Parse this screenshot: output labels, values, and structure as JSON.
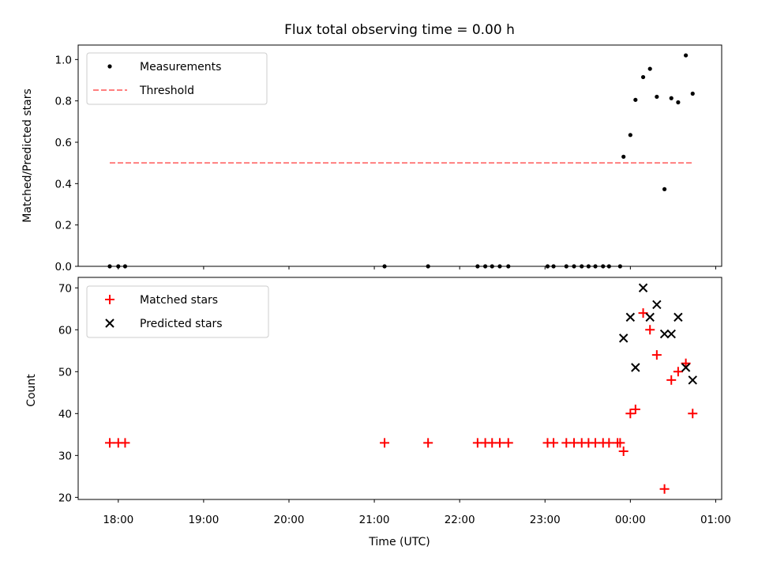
{
  "chart_data": [
    {
      "type": "scatter",
      "title": "Flux total observing time = 0.00 h",
      "xlabel": "",
      "ylabel": "Matched/Predicted stars",
      "ylim": [
        0,
        1.07
      ],
      "yticks": [
        "0.0",
        "0.2",
        "0.4",
        "0.6",
        "0.8",
        "1.0"
      ],
      "ytick_values": [
        0,
        0.2,
        0.4,
        0.6,
        0.8,
        1.0
      ],
      "legend_position": "top-left",
      "series": [
        {
          "name": "Measurements",
          "kind": "points",
          "marker": "dot",
          "color": "#000000",
          "x_hours": [
            17.9,
            18.0,
            18.08,
            21.12,
            21.63,
            22.21,
            22.3,
            22.38,
            22.47,
            22.57,
            23.03,
            23.1,
            23.25,
            23.34,
            23.43,
            23.51,
            23.59,
            23.68,
            23.75,
            23.88,
            23.92,
            24.0,
            24.06,
            24.15,
            24.23,
            24.31,
            24.4,
            24.48,
            24.56,
            24.65,
            24.73
          ],
          "values": [
            0,
            0,
            0,
            0,
            0,
            0,
            0,
            0,
            0,
            0,
            0,
            0,
            0,
            0,
            0,
            0,
            0,
            0,
            0,
            0,
            0.53,
            0.635,
            0.805,
            0.915,
            0.955,
            0.82,
            0.373,
            0.813,
            0.793,
            1.02,
            0.835
          ]
        },
        {
          "name": "Threshold",
          "kind": "dashed-line",
          "color": "#ff7f7f",
          "x_hours": [
            17.9,
            24.73
          ],
          "values": [
            0.5,
            0.5
          ]
        }
      ]
    },
    {
      "type": "scatter",
      "title": "",
      "xlabel": "Time (UTC)",
      "ylabel": "Count",
      "ylim": [
        19.5,
        72.5
      ],
      "yticks": [
        "20",
        "30",
        "40",
        "50",
        "60",
        "70"
      ],
      "ytick_values": [
        20,
        30,
        40,
        50,
        60,
        70
      ],
      "xlim_hours": [
        17.53,
        25.07
      ],
      "xtick_values_hours": [
        18,
        19,
        20,
        21,
        22,
        23,
        24,
        25
      ],
      "xticks": [
        "18:00",
        "19:00",
        "20:00",
        "21:00",
        "22:00",
        "23:00",
        "00:00",
        "01:00"
      ],
      "legend_position": "top-left",
      "series": [
        {
          "name": "Matched stars",
          "kind": "points",
          "marker": "plus",
          "color": "#ff0000",
          "x_hours": [
            17.9,
            18.0,
            18.08,
            21.12,
            21.63,
            22.21,
            22.3,
            22.38,
            22.47,
            22.57,
            23.03,
            23.1,
            23.25,
            23.34,
            23.43,
            23.51,
            23.59,
            23.68,
            23.75,
            23.85,
            23.88,
            23.92,
            24.0,
            24.06,
            24.15,
            24.23,
            24.31,
            24.4,
            24.48,
            24.56,
            24.65,
            24.73
          ],
          "values": [
            33,
            33,
            33,
            33,
            33,
            33,
            33,
            33,
            33,
            33,
            33,
            33,
            33,
            33,
            33,
            33,
            33,
            33,
            33,
            33,
            33,
            31,
            40,
            41,
            64,
            60,
            54,
            22,
            48,
            50,
            52,
            40
          ]
        },
        {
          "name": "Predicted stars",
          "kind": "points",
          "marker": "x",
          "color": "#000000",
          "x_hours": [
            23.92,
            24.0,
            24.06,
            24.15,
            24.23,
            24.31,
            24.4,
            24.48,
            24.56,
            24.65,
            24.73
          ],
          "values": [
            58,
            63,
            51,
            70,
            63,
            66,
            59,
            59,
            63,
            51,
            48
          ]
        }
      ]
    }
  ]
}
